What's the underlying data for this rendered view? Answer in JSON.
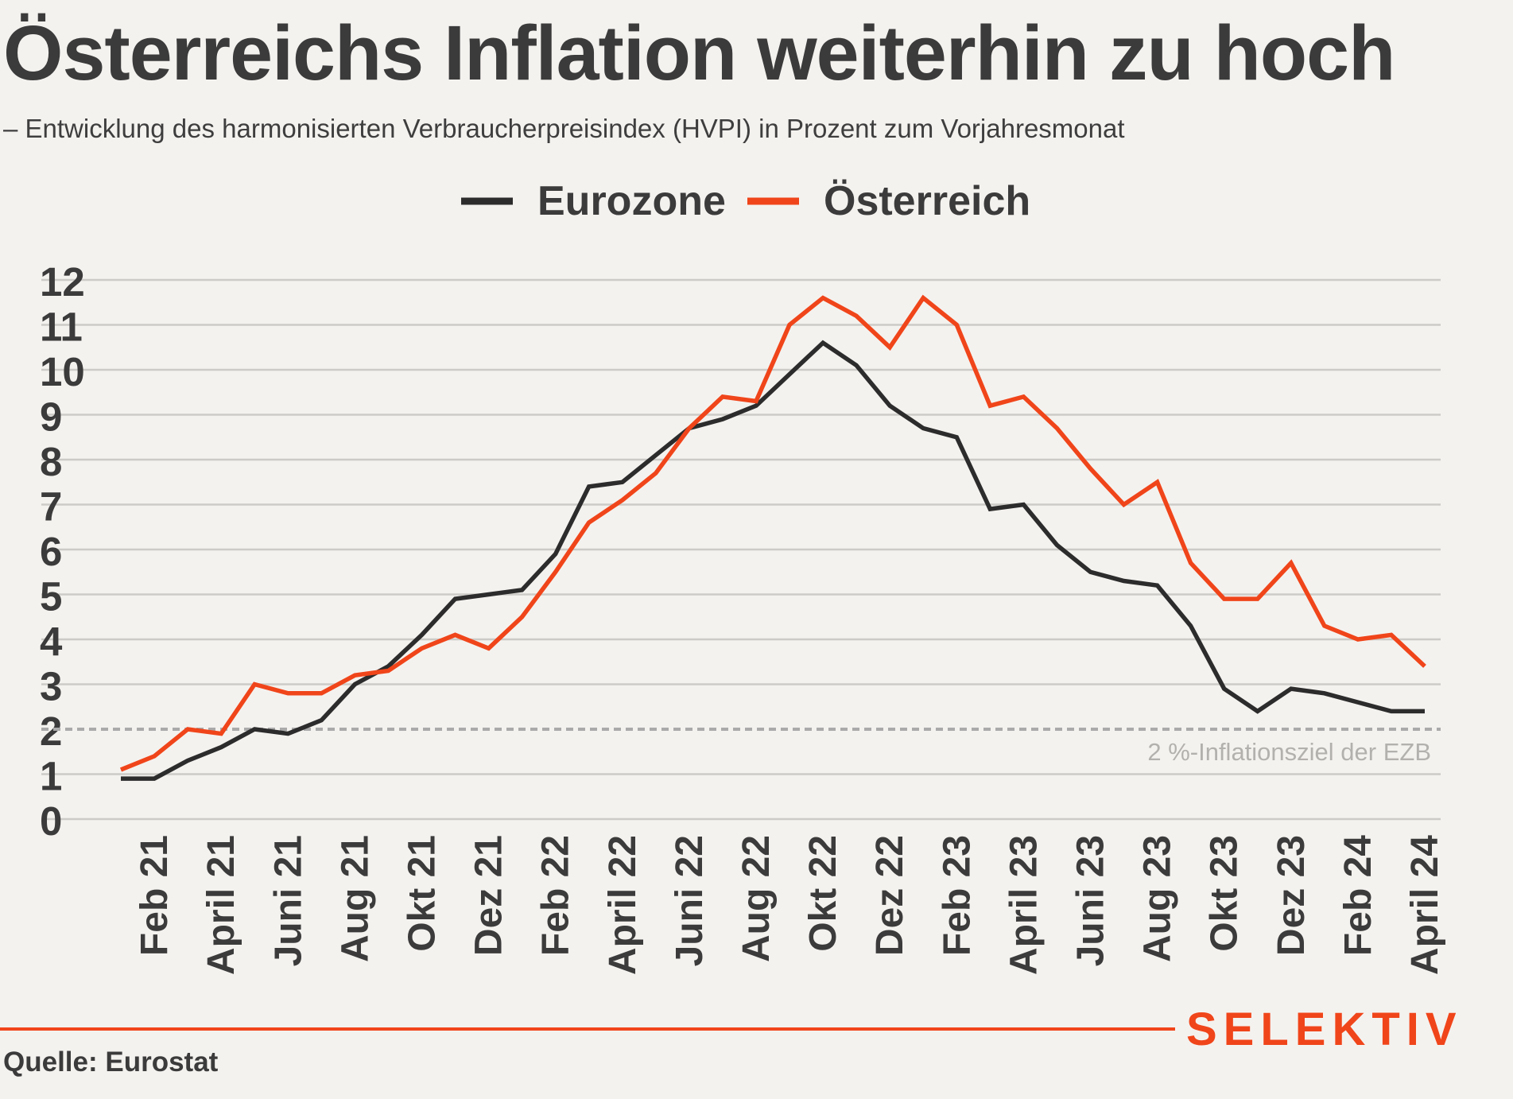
{
  "header": {
    "title": "Österreichs Inflation weiterhin zu hoch",
    "subtitle": "– Entwicklung des harmonisierten Verbraucherpreisindex (HVPI) in Prozent zum Vorjahresmonat"
  },
  "footer": {
    "source": "Quelle: Eurostat",
    "logo": "SELEKTIV"
  },
  "colors": {
    "eurozone": "#2c2c2c",
    "austria": "#f0451a",
    "grid": "#cdcbc7",
    "target": "#aaaaaa",
    "accent": "#f0451a"
  },
  "chart_data": {
    "type": "line",
    "title": "Österreichs Inflation weiterhin zu hoch",
    "subtitle": "– Entwicklung des harmonisierten Verbraucherpreisindex (HVPI) in Prozent zum Vorjahresmonat",
    "legend_position": "top-center",
    "grid": true,
    "ylim": [
      0,
      12
    ],
    "y_ticks": [
      0,
      1,
      2,
      3,
      4,
      5,
      6,
      7,
      8,
      9,
      10,
      11,
      12
    ],
    "x_tick_labels": [
      "Feb 21",
      "April 21",
      "Juni 21",
      "Aug 21",
      "Okt 21",
      "Dez 21",
      "Feb 22",
      "April 22",
      "Juni 22",
      "Aug 22",
      "Okt 22",
      "Dez 22",
      "Feb 23",
      "April 23",
      "Juni 23",
      "Aug 23",
      "Okt 23",
      "Dez 23",
      "Feb 24",
      "April 24"
    ],
    "x": [
      "Jan 21",
      "Feb 21",
      "März 21",
      "April 21",
      "Mai 21",
      "Juni 21",
      "Juli 21",
      "Aug 21",
      "Sep 21",
      "Okt 21",
      "Nov 21",
      "Dez 21",
      "Jan 22",
      "Feb 22",
      "März 22",
      "April 22",
      "Mai 22",
      "Juni 22",
      "Juli 22",
      "Aug 22",
      "Sep 22",
      "Okt 22",
      "Nov 22",
      "Dez 22",
      "Jan 23",
      "Feb 23",
      "März 23",
      "April 23",
      "Mai 23",
      "Juni 23",
      "Juli 23",
      "Aug 23",
      "Sep 23",
      "Okt 23",
      "Nov 23",
      "Dez 23",
      "Jan 24",
      "Feb 24",
      "März 24",
      "April 24"
    ],
    "series": [
      {
        "name": "Eurozone",
        "values": [
          0.9,
          0.9,
          1.3,
          1.6,
          2.0,
          1.9,
          2.2,
          3.0,
          3.4,
          4.1,
          4.9,
          5.0,
          5.1,
          5.9,
          7.4,
          7.5,
          8.1,
          8.7,
          8.9,
          9.2,
          9.9,
          10.6,
          10.1,
          9.2,
          8.7,
          8.5,
          6.9,
          7.0,
          6.1,
          5.5,
          5.3,
          5.2,
          4.3,
          2.9,
          2.4,
          2.9,
          2.8,
          2.6,
          2.4,
          2.4
        ]
      },
      {
        "name": "Österreich",
        "values": [
          1.1,
          1.4,
          2.0,
          1.9,
          3.0,
          2.8,
          2.8,
          3.2,
          3.3,
          3.8,
          4.1,
          3.8,
          4.5,
          5.5,
          6.6,
          7.1,
          7.7,
          8.7,
          9.4,
          9.3,
          11.0,
          11.6,
          11.2,
          10.5,
          11.6,
          11.0,
          9.2,
          9.4,
          8.7,
          7.8,
          7.0,
          7.5,
          5.7,
          4.9,
          4.9,
          5.7,
          4.3,
          4.0,
          4.1,
          3.4
        ]
      }
    ],
    "reference_line": {
      "value": 2,
      "label": "2 %-Inflationsziel der EZB"
    }
  }
}
